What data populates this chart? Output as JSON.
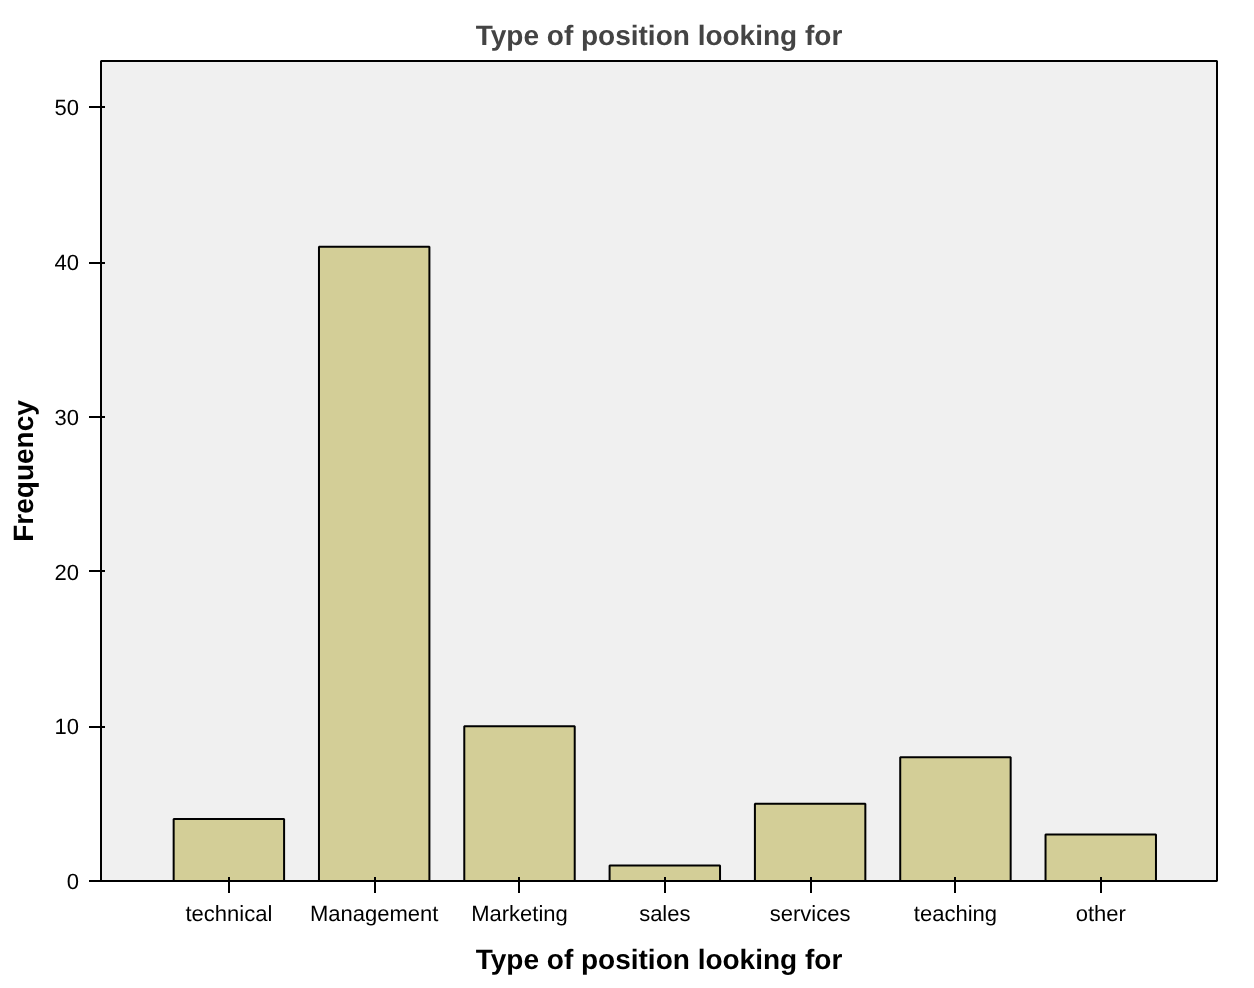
{
  "chart_data": {
    "type": "bar",
    "title": "Type of position looking for",
    "xlabel": "Type of position looking for",
    "ylabel": "Frequency",
    "categories": [
      "technical",
      "Management",
      "Marketing",
      "sales",
      "services",
      "teaching",
      "other"
    ],
    "values": [
      4,
      41,
      10,
      1,
      5,
      8,
      3
    ],
    "color": "#d3ce97",
    "ylim": [
      0,
      53
    ],
    "yticks": [
      0,
      10,
      20,
      30,
      40,
      50
    ],
    "grid": false
  }
}
